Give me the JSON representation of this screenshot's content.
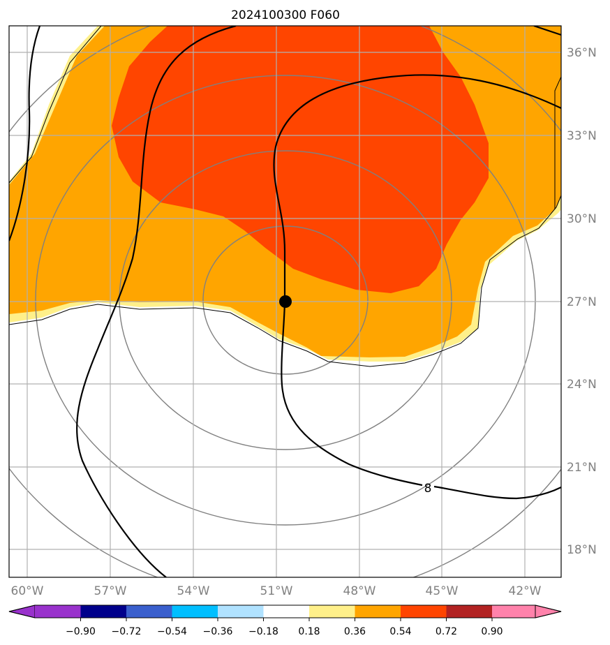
{
  "title": "2024100300 F060",
  "map": {
    "lon_labels": [
      "60°W",
      "57°W",
      "54°W",
      "51°W",
      "48°W",
      "45°W",
      "42°W"
    ],
    "lat_labels": [
      "36°N",
      "33°N",
      "30°N",
      "27°N",
      "24°N",
      "21°N",
      "18°N"
    ],
    "storm_center": {
      "lon": "50.6°W",
      "lat": "27.0°N"
    },
    "contour_label": "8",
    "colors": {
      "band_0_18_0_36": "#fff08a",
      "band_0_36_0_54": "#ffa500",
      "band_0_54_0_72": "#ff4500",
      "coastline": "#000000",
      "range_rings": "#808080",
      "gridlines": "#b0b0b0"
    }
  },
  "colorbar": {
    "tick_labels": [
      "−0.90",
      "−0.72",
      "−0.54",
      "−0.36",
      "−0.18",
      "0.18",
      "0.36",
      "0.54",
      "0.72",
      "0.90"
    ],
    "colors": [
      "#9932cc",
      "#00008b",
      "#3a5fcd",
      "#00bfff",
      "#b0e2ff",
      "#ffffff",
      "#fff08a",
      "#ffa500",
      "#ff4500",
      "#b22222",
      "#ff82ab"
    ]
  }
}
